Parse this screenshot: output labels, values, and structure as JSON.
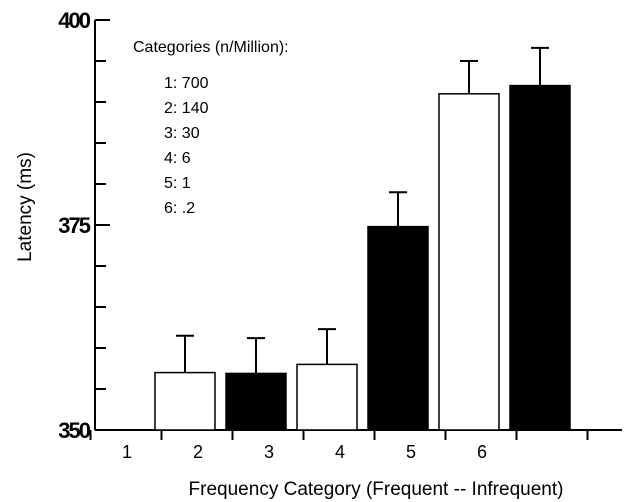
{
  "chart_data": {
    "type": "bar",
    "title": "",
    "xlabel": "Frequency Category (Frequent -- Infrequent)",
    "ylabel": "Latency (ms)",
    "ylim": [
      350,
      400
    ],
    "yticks": [
      350,
      375,
      400
    ],
    "categories": [
      "1",
      "2",
      "3",
      "4",
      "5",
      "6"
    ],
    "values": [
      357.0,
      356.9,
      358.0,
      374.8,
      391.0,
      392.0
    ],
    "error_upper": [
      361.5,
      361.2,
      362.3,
      379.0,
      395.0,
      396.6
    ],
    "fill_colors": [
      "#ffffff",
      "#000000",
      "#ffffff",
      "#000000",
      "#ffffff",
      "#000000"
    ],
    "grid": false,
    "legend": {
      "placement": "top-left",
      "title": "Categories (n/Million):",
      "items": [
        "1:  700",
        "2:  140",
        "3:  30",
        "4:  6",
        "5:  1",
        "6:  .2"
      ]
    }
  }
}
